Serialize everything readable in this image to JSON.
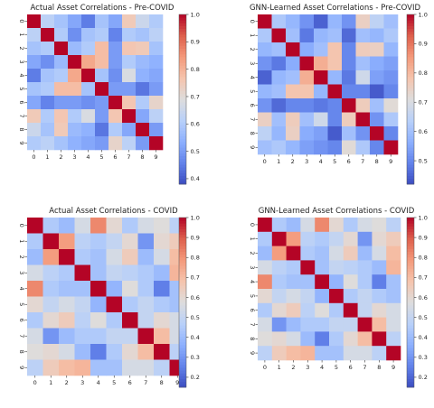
{
  "chart_data": [
    {
      "type": "heatmap",
      "title": "Actual Asset Correlations - Pre-COVID",
      "x_labels": [
        "0",
        "1",
        "2",
        "3",
        "4",
        "5",
        "6",
        "7",
        "8",
        "9"
      ],
      "y_labels": [
        "0",
        "1",
        "2",
        "3",
        "4",
        "5",
        "6",
        "7",
        "8",
        "9"
      ],
      "colorbar": {
        "min": 0.38,
        "max": 1.0,
        "ticks": [
          "1.0",
          "0.9",
          "0.8",
          "0.7",
          "0.6",
          "0.5",
          "0.4"
        ],
        "tick_values": [
          1.0,
          0.9,
          0.8,
          0.7,
          0.6,
          0.5,
          0.4
        ]
      },
      "values": [
        [
          1.0,
          0.62,
          0.58,
          0.52,
          0.45,
          0.58,
          0.52,
          0.75,
          0.65,
          0.6
        ],
        [
          0.62,
          1.0,
          0.6,
          0.48,
          0.58,
          0.6,
          0.46,
          0.6,
          0.58,
          0.62
        ],
        [
          0.58,
          0.6,
          1.0,
          0.56,
          0.6,
          0.78,
          0.5,
          0.76,
          0.75,
          0.58
        ],
        [
          0.52,
          0.48,
          0.56,
          1.0,
          0.82,
          0.78,
          0.5,
          0.6,
          0.56,
          0.54
        ],
        [
          0.45,
          0.58,
          0.6,
          0.82,
          1.0,
          0.58,
          0.48,
          0.68,
          0.54,
          0.52
        ],
        [
          0.58,
          0.6,
          0.78,
          0.78,
          0.58,
          1.0,
          0.5,
          0.5,
          0.44,
          0.5
        ],
        [
          0.52,
          0.46,
          0.5,
          0.5,
          0.48,
          0.5,
          1.0,
          0.76,
          0.6,
          0.72
        ],
        [
          0.75,
          0.6,
          0.76,
          0.6,
          0.68,
          0.5,
          0.76,
          1.0,
          0.52,
          0.62
        ],
        [
          0.65,
          0.58,
          0.75,
          0.56,
          0.54,
          0.44,
          0.6,
          0.52,
          1.0,
          0.5
        ],
        [
          0.6,
          0.62,
          0.58,
          0.54,
          0.52,
          0.5,
          0.72,
          0.62,
          0.5,
          1.0
        ]
      ]
    },
    {
      "type": "heatmap",
      "title": "GNN-Learned Asset Correlations - Pre-COVID",
      "x_labels": [
        "0",
        "1",
        "2",
        "3",
        "4",
        "5",
        "6",
        "7",
        "8",
        "9"
      ],
      "y_labels": [
        "0",
        "1",
        "2",
        "3",
        "4",
        "5",
        "6",
        "7",
        "8",
        "9"
      ],
      "colorbar": {
        "min": 0.42,
        "max": 1.0,
        "ticks": [
          "1.0",
          "0.9",
          "0.8",
          "0.7",
          "0.6",
          "0.5"
        ],
        "tick_values": [
          1.0,
          0.9,
          0.8,
          0.7,
          0.6,
          0.5
        ]
      },
      "values": [
        [
          1.0,
          0.62,
          0.58,
          0.52,
          0.45,
          0.58,
          0.52,
          0.75,
          0.65,
          0.6
        ],
        [
          0.62,
          1.0,
          0.6,
          0.48,
          0.58,
          0.6,
          0.46,
          0.6,
          0.58,
          0.62
        ],
        [
          0.58,
          0.6,
          1.0,
          0.56,
          0.6,
          0.78,
          0.5,
          0.76,
          0.75,
          0.58
        ],
        [
          0.52,
          0.48,
          0.56,
          1.0,
          0.82,
          0.78,
          0.5,
          0.6,
          0.56,
          0.54
        ],
        [
          0.45,
          0.58,
          0.6,
          0.82,
          1.0,
          0.58,
          0.48,
          0.68,
          0.54,
          0.52
        ],
        [
          0.58,
          0.6,
          0.78,
          0.78,
          0.58,
          1.0,
          0.5,
          0.5,
          0.44,
          0.5
        ],
        [
          0.52,
          0.46,
          0.5,
          0.5,
          0.48,
          0.5,
          1.0,
          0.76,
          0.6,
          0.72
        ],
        [
          0.75,
          0.6,
          0.76,
          0.6,
          0.68,
          0.5,
          0.76,
          1.0,
          0.52,
          0.62
        ],
        [
          0.65,
          0.58,
          0.75,
          0.56,
          0.54,
          0.44,
          0.6,
          0.52,
          1.0,
          0.5
        ],
        [
          0.6,
          0.62,
          0.58,
          0.54,
          0.52,
          0.5,
          0.72,
          0.62,
          0.5,
          1.0
        ]
      ]
    },
    {
      "type": "heatmap",
      "title": "Actual Asset Correlations - COVID",
      "x_labels": [
        "0",
        "1",
        "2",
        "3",
        "4",
        "5",
        "6",
        "7",
        "8",
        "9"
      ],
      "y_labels": [
        "0",
        "1",
        "2",
        "3",
        "4",
        "5",
        "6",
        "7",
        "8",
        "9"
      ],
      "colorbar": {
        "min": 0.15,
        "max": 1.0,
        "ticks": [
          "1.0",
          "0.9",
          "0.8",
          "0.7",
          "0.6",
          "0.5",
          "0.4",
          "0.3",
          "0.2"
        ],
        "tick_values": [
          1.0,
          0.9,
          0.8,
          0.7,
          0.6,
          0.5,
          0.4,
          0.3,
          0.2
        ]
      },
      "values": [
        [
          1.0,
          0.45,
          0.4,
          0.55,
          0.82,
          0.6,
          0.45,
          0.55,
          0.58,
          0.48
        ],
        [
          0.45,
          1.0,
          0.78,
          0.48,
          0.45,
          0.5,
          0.6,
          0.3,
          0.6,
          0.65
        ],
        [
          0.4,
          0.78,
          1.0,
          0.45,
          0.42,
          0.55,
          0.65,
          0.4,
          0.55,
          0.7
        ],
        [
          0.55,
          0.48,
          0.45,
          1.0,
          0.42,
          0.5,
          0.48,
          0.45,
          0.4,
          0.72
        ],
        [
          0.82,
          0.45,
          0.42,
          0.42,
          1.0,
          0.38,
          0.58,
          0.45,
          0.25,
          0.42
        ],
        [
          0.6,
          0.5,
          0.55,
          0.5,
          0.38,
          1.0,
          0.45,
          0.5,
          0.45,
          0.42
        ],
        [
          0.45,
          0.6,
          0.65,
          0.48,
          0.58,
          0.45,
          1.0,
          0.5,
          0.6,
          0.55
        ],
        [
          0.55,
          0.3,
          0.4,
          0.45,
          0.45,
          0.5,
          0.5,
          1.0,
          0.7,
          0.55
        ],
        [
          0.58,
          0.6,
          0.55,
          0.4,
          0.25,
          0.45,
          0.6,
          0.7,
          1.0,
          0.48
        ],
        [
          0.48,
          0.65,
          0.7,
          0.72,
          0.42,
          0.42,
          0.55,
          0.55,
          0.48,
          1.0
        ]
      ]
    },
    {
      "type": "heatmap",
      "title": "GNN-Learned Asset Correlations - COVID",
      "x_labels": [
        "0",
        "1",
        "2",
        "3",
        "4",
        "5",
        "6",
        "7",
        "8",
        "9"
      ],
      "y_labels": [
        "0",
        "1",
        "2",
        "3",
        "4",
        "5",
        "6",
        "7",
        "8",
        "9"
      ],
      "colorbar": {
        "min": 0.15,
        "max": 1.0,
        "ticks": [
          "1.0",
          "0.9",
          "0.8",
          "0.7",
          "0.6",
          "0.5",
          "0.4",
          "0.3",
          "0.2"
        ],
        "tick_values": [
          1.0,
          0.9,
          0.8,
          0.7,
          0.6,
          0.5,
          0.4,
          0.3,
          0.2
        ]
      },
      "values": [
        [
          1.0,
          0.45,
          0.4,
          0.55,
          0.82,
          0.6,
          0.45,
          0.55,
          0.58,
          0.48
        ],
        [
          0.45,
          1.0,
          0.78,
          0.48,
          0.45,
          0.5,
          0.6,
          0.3,
          0.6,
          0.65
        ],
        [
          0.4,
          0.78,
          1.0,
          0.45,
          0.42,
          0.55,
          0.65,
          0.4,
          0.55,
          0.7
        ],
        [
          0.55,
          0.48,
          0.45,
          1.0,
          0.42,
          0.5,
          0.48,
          0.45,
          0.4,
          0.72
        ],
        [
          0.82,
          0.45,
          0.42,
          0.42,
          1.0,
          0.38,
          0.58,
          0.45,
          0.25,
          0.42
        ],
        [
          0.6,
          0.5,
          0.55,
          0.5,
          0.38,
          1.0,
          0.45,
          0.5,
          0.45,
          0.42
        ],
        [
          0.45,
          0.6,
          0.65,
          0.48,
          0.58,
          0.45,
          1.0,
          0.5,
          0.6,
          0.55
        ],
        [
          0.55,
          0.3,
          0.4,
          0.45,
          0.45,
          0.5,
          0.5,
          1.0,
          0.7,
          0.55
        ],
        [
          0.58,
          0.6,
          0.55,
          0.4,
          0.25,
          0.45,
          0.6,
          0.7,
          1.0,
          0.48
        ],
        [
          0.48,
          0.65,
          0.7,
          0.72,
          0.42,
          0.42,
          0.55,
          0.55,
          0.48,
          1.0
        ]
      ]
    }
  ]
}
